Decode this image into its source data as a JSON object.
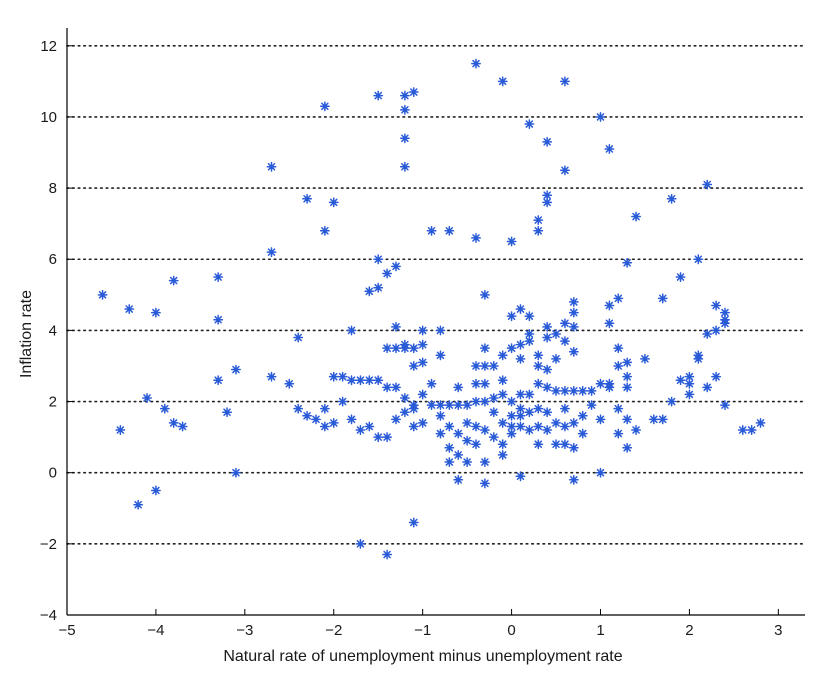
{
  "chart_data": {
    "type": "scatter",
    "xlabel": "Natural rate of unemployment minus unemployment rate",
    "ylabel": "Inflation rate",
    "xlim": [
      -5,
      3.3
    ],
    "ylim": [
      -4,
      12.5
    ],
    "x_ticks": [
      -5,
      -4,
      -3,
      -2,
      -1,
      0,
      1,
      2,
      3
    ],
    "y_ticks": [
      -4,
      -2,
      0,
      2,
      4,
      6,
      8,
      10,
      12
    ],
    "x_tick_labels": [
      "−5",
      "−4",
      "−3",
      "−2",
      "−1",
      "0",
      "1",
      "2",
      "3"
    ],
    "y_tick_labels": [
      "−4",
      "−2",
      "0",
      "2",
      "4",
      "6",
      "8",
      "10",
      "12"
    ],
    "grid": {
      "horizontal_dotted": true,
      "lines_at": [
        -2,
        0,
        2,
        4,
        6,
        8,
        10,
        12
      ]
    },
    "marker": "asterisk",
    "marker_color": "#2a5bd7",
    "points": [
      [
        -4.6,
        5.0
      ],
      [
        -4.4,
        1.2
      ],
      [
        -4.3,
        4.6
      ],
      [
        -4.2,
        -0.9
      ],
      [
        -4.1,
        2.1
      ],
      [
        -4.0,
        4.5
      ],
      [
        -4.0,
        -0.5
      ],
      [
        -3.9,
        1.8
      ],
      [
        -3.8,
        5.4
      ],
      [
        -3.8,
        1.4
      ],
      [
        -3.7,
        1.3
      ],
      [
        -3.3,
        5.5
      ],
      [
        -3.3,
        4.3
      ],
      [
        -3.3,
        2.6
      ],
      [
        -3.2,
        1.7
      ],
      [
        -3.1,
        2.9
      ],
      [
        -3.1,
        0.0
      ],
      [
        -2.7,
        8.6
      ],
      [
        -2.7,
        6.2
      ],
      [
        -2.7,
        2.7
      ],
      [
        -2.5,
        2.5
      ],
      [
        -2.4,
        3.8
      ],
      [
        -2.4,
        1.8
      ],
      [
        -2.3,
        7.7
      ],
      [
        -2.3,
        1.6
      ],
      [
        -2.2,
        1.5
      ],
      [
        -2.1,
        10.3
      ],
      [
        -2.1,
        6.8
      ],
      [
        -2.1,
        1.8
      ],
      [
        -2.1,
        1.3
      ],
      [
        -2.0,
        7.6
      ],
      [
        -2.0,
        2.7
      ],
      [
        -2.0,
        1.4
      ],
      [
        -1.9,
        2.7
      ],
      [
        -1.9,
        2.0
      ],
      [
        -1.8,
        4.0
      ],
      [
        -1.8,
        2.6
      ],
      [
        -1.8,
        1.5
      ],
      [
        -1.7,
        2.6
      ],
      [
        -1.7,
        1.2
      ],
      [
        -1.7,
        -2.0
      ],
      [
        -1.6,
        5.1
      ],
      [
        -1.6,
        2.6
      ],
      [
        -1.6,
        1.3
      ],
      [
        -1.5,
        10.6
      ],
      [
        -1.5,
        6.0
      ],
      [
        -1.5,
        5.2
      ],
      [
        -1.5,
        2.6
      ],
      [
        -1.5,
        1.0
      ],
      [
        -1.4,
        5.6
      ],
      [
        -1.4,
        3.5
      ],
      [
        -1.4,
        2.4
      ],
      [
        -1.4,
        1.0
      ],
      [
        -1.4,
        -2.3
      ],
      [
        -1.3,
        5.8
      ],
      [
        -1.3,
        4.1
      ],
      [
        -1.3,
        3.5
      ],
      [
        -1.3,
        2.4
      ],
      [
        -1.3,
        1.5
      ],
      [
        -1.2,
        10.6
      ],
      [
        -1.2,
        10.2
      ],
      [
        -1.2,
        9.4
      ],
      [
        -1.2,
        8.6
      ],
      [
        -1.2,
        3.6
      ],
      [
        -1.2,
        3.5
      ],
      [
        -1.2,
        2.1
      ],
      [
        -1.2,
        1.7
      ],
      [
        -1.1,
        10.7
      ],
      [
        -1.1,
        3.5
      ],
      [
        -1.1,
        3.0
      ],
      [
        -1.1,
        1.9
      ],
      [
        -1.1,
        1.8
      ],
      [
        -1.1,
        1.3
      ],
      [
        -1.1,
        -1.4
      ],
      [
        -1.0,
        4.0
      ],
      [
        -1.0,
        3.6
      ],
      [
        -1.0,
        3.1
      ],
      [
        -1.0,
        2.2
      ],
      [
        -1.0,
        1.4
      ],
      [
        -0.9,
        6.8
      ],
      [
        -0.9,
        2.5
      ],
      [
        -0.9,
        1.9
      ],
      [
        -0.8,
        4.0
      ],
      [
        -0.8,
        3.3
      ],
      [
        -0.8,
        1.9
      ],
      [
        -0.8,
        1.6
      ],
      [
        -0.8,
        1.1
      ],
      [
        -0.7,
        6.8
      ],
      [
        -0.7,
        1.9
      ],
      [
        -0.7,
        1.3
      ],
      [
        -0.7,
        0.7
      ],
      [
        -0.7,
        0.3
      ],
      [
        -0.6,
        2.4
      ],
      [
        -0.6,
        1.9
      ],
      [
        -0.6,
        1.1
      ],
      [
        -0.6,
        0.5
      ],
      [
        -0.6,
        -0.2
      ],
      [
        -0.5,
        1.9
      ],
      [
        -0.5,
        1.4
      ],
      [
        -0.5,
        0.9
      ],
      [
        -0.5,
        0.3
      ],
      [
        -0.4,
        11.5
      ],
      [
        -0.4,
        6.6
      ],
      [
        -0.4,
        3.0
      ],
      [
        -0.4,
        2.5
      ],
      [
        -0.4,
        2.0
      ],
      [
        -0.4,
        1.3
      ],
      [
        -0.4,
        0.8
      ],
      [
        -0.3,
        5.0
      ],
      [
        -0.3,
        3.5
      ],
      [
        -0.3,
        3.0
      ],
      [
        -0.3,
        2.5
      ],
      [
        -0.3,
        2.0
      ],
      [
        -0.3,
        1.2
      ],
      [
        -0.3,
        0.3
      ],
      [
        -0.3,
        -0.3
      ],
      [
        -0.2,
        3.0
      ],
      [
        -0.2,
        2.1
      ],
      [
        -0.2,
        1.7
      ],
      [
        -0.2,
        1.0
      ],
      [
        -0.1,
        11.0
      ],
      [
        -0.1,
        3.3
      ],
      [
        -0.1,
        2.6
      ],
      [
        -0.1,
        2.2
      ],
      [
        -0.1,
        1.4
      ],
      [
        -0.1,
        0.8
      ],
      [
        -0.1,
        0.5
      ],
      [
        0.0,
        6.5
      ],
      [
        0.0,
        4.4
      ],
      [
        0.0,
        3.5
      ],
      [
        0.0,
        2.0
      ],
      [
        0.0,
        1.6
      ],
      [
        0.0,
        1.3
      ],
      [
        0.0,
        1.1
      ],
      [
        0.1,
        4.6
      ],
      [
        0.1,
        3.6
      ],
      [
        0.1,
        3.2
      ],
      [
        0.1,
        2.2
      ],
      [
        0.1,
        1.8
      ],
      [
        0.1,
        1.6
      ],
      [
        0.1,
        1.3
      ],
      [
        0.1,
        -0.1
      ],
      [
        0.2,
        9.8
      ],
      [
        0.2,
        4.4
      ],
      [
        0.2,
        3.9
      ],
      [
        0.2,
        3.7
      ],
      [
        0.2,
        2.2
      ],
      [
        0.2,
        1.7
      ],
      [
        0.2,
        1.2
      ],
      [
        0.3,
        7.1
      ],
      [
        0.3,
        6.8
      ],
      [
        0.3,
        3.3
      ],
      [
        0.3,
        3.0
      ],
      [
        0.3,
        2.5
      ],
      [
        0.3,
        1.8
      ],
      [
        0.3,
        1.3
      ],
      [
        0.3,
        0.8
      ],
      [
        0.4,
        9.3
      ],
      [
        0.4,
        7.8
      ],
      [
        0.4,
        7.6
      ],
      [
        0.4,
        4.1
      ],
      [
        0.4,
        3.8
      ],
      [
        0.4,
        2.9
      ],
      [
        0.4,
        2.4
      ],
      [
        0.4,
        1.7
      ],
      [
        0.4,
        1.2
      ],
      [
        0.5,
        3.9
      ],
      [
        0.5,
        3.2
      ],
      [
        0.5,
        2.3
      ],
      [
        0.5,
        1.4
      ],
      [
        0.5,
        0.8
      ],
      [
        0.6,
        11.0
      ],
      [
        0.6,
        8.5
      ],
      [
        0.6,
        4.2
      ],
      [
        0.6,
        3.7
      ],
      [
        0.6,
        2.3
      ],
      [
        0.6,
        1.8
      ],
      [
        0.6,
        1.3
      ],
      [
        0.6,
        0.8
      ],
      [
        0.7,
        4.8
      ],
      [
        0.7,
        4.5
      ],
      [
        0.7,
        4.1
      ],
      [
        0.7,
        3.4
      ],
      [
        0.7,
        2.3
      ],
      [
        0.7,
        1.4
      ],
      [
        0.7,
        0.7
      ],
      [
        0.7,
        -0.2
      ],
      [
        0.8,
        2.3
      ],
      [
        0.8,
        1.6
      ],
      [
        0.8,
        1.1
      ],
      [
        0.9,
        2.3
      ],
      [
        0.9,
        1.9
      ],
      [
        1.0,
        10.0
      ],
      [
        1.0,
        2.5
      ],
      [
        1.0,
        1.5
      ],
      [
        1.0,
        0.0
      ],
      [
        1.1,
        9.1
      ],
      [
        1.1,
        4.7
      ],
      [
        1.1,
        4.2
      ],
      [
        1.1,
        2.5
      ],
      [
        1.1,
        2.4
      ],
      [
        1.2,
        4.9
      ],
      [
        1.2,
        3.5
      ],
      [
        1.2,
        3.0
      ],
      [
        1.2,
        1.8
      ],
      [
        1.2,
        1.1
      ],
      [
        1.3,
        5.9
      ],
      [
        1.3,
        3.1
      ],
      [
        1.3,
        2.7
      ],
      [
        1.3,
        2.4
      ],
      [
        1.3,
        1.5
      ],
      [
        1.3,
        0.7
      ],
      [
        1.4,
        7.2
      ],
      [
        1.4,
        1.2
      ],
      [
        1.5,
        3.2
      ],
      [
        1.6,
        1.5
      ],
      [
        1.7,
        4.9
      ],
      [
        1.7,
        1.5
      ],
      [
        1.8,
        7.7
      ],
      [
        1.8,
        2.0
      ],
      [
        1.9,
        5.5
      ],
      [
        1.9,
        2.6
      ],
      [
        2.0,
        2.7
      ],
      [
        2.0,
        2.5
      ],
      [
        2.0,
        2.2
      ],
      [
        2.1,
        6.0
      ],
      [
        2.1,
        3.3
      ],
      [
        2.1,
        3.2
      ],
      [
        2.2,
        8.1
      ],
      [
        2.2,
        3.9
      ],
      [
        2.2,
        2.4
      ],
      [
        2.3,
        4.7
      ],
      [
        2.3,
        4.0
      ],
      [
        2.3,
        2.7
      ],
      [
        2.4,
        4.5
      ],
      [
        2.4,
        4.3
      ],
      [
        2.4,
        4.2
      ],
      [
        2.4,
        1.9
      ],
      [
        2.6,
        1.2
      ],
      [
        2.7,
        1.2
      ],
      [
        2.8,
        1.4
      ]
    ]
  }
}
